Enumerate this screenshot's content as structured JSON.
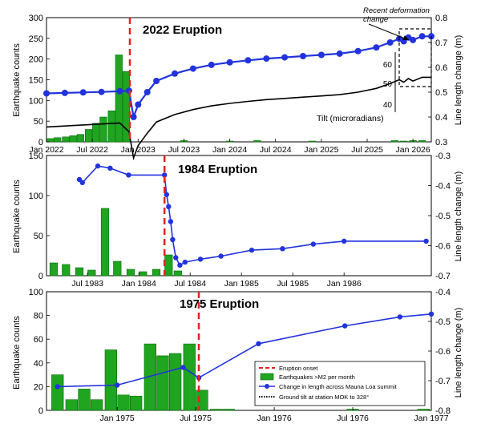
{
  "chart_data": [
    {
      "type": "bar",
      "title": "2022 Eruption",
      "ylabel_left": "Earthquake counts",
      "ylabel_right": "Line length change (m)",
      "ylim_left": [
        0,
        300
      ],
      "ylim_right": [
        0.3,
        0.8
      ],
      "yticks_left": [
        "0",
        "50",
        "100",
        "150",
        "200",
        "250",
        "300"
      ],
      "yticks_right": [
        "0.3",
        "0.4",
        "0.5",
        "0.6",
        "0.7",
        "0.8"
      ],
      "xlim": [
        2022.0,
        2026.2
      ],
      "xticks": [
        {
          "v": 2022.0,
          "label": "Jan 2022"
        },
        {
          "v": 2022.5,
          "label": "Jul 2022"
        },
        {
          "v": 2023.0,
          "label": "Jan 2023"
        },
        {
          "v": 2023.5,
          "label": "Jul 2023"
        },
        {
          "v": 2024.0,
          "label": "Jan 2024"
        },
        {
          "v": 2024.5,
          "label": "Jul 2024"
        },
        {
          "v": 2025.0,
          "label": "Jan 2025"
        },
        {
          "v": 2025.5,
          "label": "Jul 2025"
        },
        {
          "v": 2026.0,
          "label": "Jan 2026"
        }
      ],
      "eruption": 2022.91,
      "bars_x": [
        2022.04,
        2022.12,
        2022.21,
        2022.29,
        2022.37,
        2022.46,
        2022.54,
        2022.62,
        2022.71,
        2022.79,
        2022.87,
        2023.5,
        2024.0,
        2024.3,
        2024.9,
        2025.8,
        2025.9,
        2026.0,
        2026.1
      ],
      "bars_values": [
        8,
        10,
        12,
        15,
        18,
        30,
        45,
        60,
        75,
        210,
        170,
        3,
        2,
        3,
        2,
        3,
        2,
        3,
        3
      ],
      "series_length": {
        "name": "Change in length across Mauna Loa summit",
        "x": [
          2022.0,
          2022.2,
          2022.4,
          2022.6,
          2022.8,
          2022.9,
          2022.95,
          2023.0,
          2023.1,
          2023.2,
          2023.4,
          2023.6,
          2023.8,
          2024.0,
          2024.2,
          2024.4,
          2024.6,
          2024.8,
          2025.0,
          2025.2,
          2025.4,
          2025.6,
          2025.75,
          2025.85,
          2025.9,
          2025.95,
          2026.0,
          2026.1,
          2026.2
        ],
        "y": [
          0.495,
          0.497,
          0.499,
          0.501,
          0.504,
          0.506,
          0.4,
          0.45,
          0.5,
          0.545,
          0.575,
          0.595,
          0.61,
          0.62,
          0.628,
          0.635,
          0.64,
          0.645,
          0.65,
          0.655,
          0.665,
          0.68,
          0.7,
          0.715,
          0.705,
          0.72,
          0.71,
          0.725,
          0.725
        ]
      },
      "inset": {
        "label": "Tilt (microradians)",
        "ticks": [
          "40",
          "50",
          "60"
        ]
      },
      "annotation": "Recent deformation change"
    },
    {
      "type": "bar",
      "title": "1984 Eruption",
      "ylabel_left": "Earthquake counts",
      "ylabel_right": "Line length change (m)",
      "ylim_left": [
        0,
        150
      ],
      "ylim_right": [
        -0.7,
        -0.3
      ],
      "yticks_left": [
        "0",
        "50",
        "100",
        "150"
      ],
      "yticks_right": [
        "-0.7",
        "-0.6",
        "-0.5",
        "-0.4",
        "-0.3"
      ],
      "xlim": [
        1983.1,
        1986.85
      ],
      "xticks": [
        {
          "v": 1983.5,
          "label": "Jul 1983"
        },
        {
          "v": 1984.0,
          "label": "Jan 1984"
        },
        {
          "v": 1984.5,
          "label": "Jul 1984"
        },
        {
          "v": 1985.0,
          "label": "Jan 1985"
        },
        {
          "v": 1985.5,
          "label": "Jul 1985"
        },
        {
          "v": 1986.0,
          "label": "Jan 1986"
        }
      ],
      "eruption": 1984.25,
      "bars_x": [
        1983.17,
        1983.29,
        1983.42,
        1983.54,
        1983.67,
        1983.79,
        1983.92,
        1984.04,
        1984.17,
        1984.29,
        1984.38
      ],
      "bars_values": [
        16,
        14,
        10,
        7,
        84,
        18,
        8,
        5,
        8,
        26,
        6
      ],
      "series_length": {
        "name": "Change in length across Mauna Loa summit",
        "x": [
          1983.42,
          1983.45,
          1983.6,
          1983.72,
          1983.9,
          1984.25,
          1984.27,
          1984.29,
          1984.31,
          1984.33,
          1984.36,
          1984.4,
          1984.45,
          1984.6,
          1984.8,
          1985.1,
          1985.4,
          1985.7,
          1986.0,
          1986.8
        ],
        "y": [
          -0.38,
          -0.39,
          -0.335,
          -0.342,
          -0.365,
          -0.365,
          -0.43,
          -0.47,
          -0.52,
          -0.58,
          -0.64,
          -0.665,
          -0.655,
          -0.645,
          -0.635,
          -0.615,
          -0.61,
          -0.595,
          -0.585,
          -0.585
        ]
      }
    },
    {
      "type": "bar",
      "title": "1975 Eruption",
      "ylabel_left": "Earthquake counts",
      "ylabel_right": "Line length change (m)",
      "ylim_left": [
        0,
        100
      ],
      "ylim_right": [
        -0.8,
        -0.4
      ],
      "yticks_left": [
        "0",
        "20",
        "40",
        "60",
        "80",
        "100"
      ],
      "yticks_right": [
        "-0.8",
        "-0.7",
        "-0.6",
        "-0.5",
        "-0.4"
      ],
      "xlim": [
        1974.55,
        1977.0
      ],
      "xticks": [
        {
          "v": 1975.0,
          "label": "Jan 1975"
        },
        {
          "v": 1975.5,
          "label": "Jul 1975"
        },
        {
          "v": 1976.0,
          "label": "Jan 1976"
        },
        {
          "v": 1976.5,
          "label": "Jul 1976"
        },
        {
          "v": 1977.0,
          "label": "Jan 1977"
        }
      ],
      "eruption": 1975.52,
      "bars_x": [
        1974.62,
        1974.71,
        1974.79,
        1974.87,
        1974.96,
        1975.04,
        1975.12,
        1975.21,
        1975.29,
        1975.37,
        1975.46,
        1975.54,
        1975.63,
        1975.71,
        1976.5,
        1976.95
      ],
      "bars_values": [
        30,
        9,
        18,
        9,
        51,
        13,
        12,
        56,
        46,
        48,
        56,
        17,
        1,
        1,
        1,
        1
      ],
      "series_length": {
        "name": "Change in length across Mauna Loa summit",
        "x": [
          1974.62,
          1975.0,
          1975.42,
          1975.52,
          1975.9,
          1976.45,
          1976.8,
          1977.0
        ],
        "y": [
          -0.72,
          -0.715,
          -0.655,
          -0.69,
          -0.575,
          -0.515,
          -0.485,
          -0.475
        ]
      },
      "legend": {
        "position": "bottom-right",
        "entries": [
          "Eruption onset",
          "Earthquakes >M2 per month",
          "Change in length across Mauna Loa summit",
          "Ground tilt at station MOK to 328°"
        ]
      }
    }
  ]
}
